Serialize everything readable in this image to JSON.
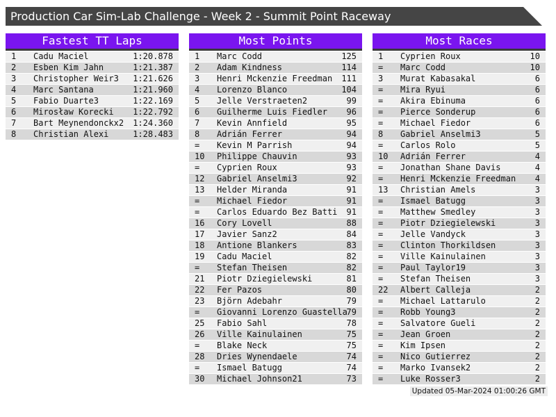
{
  "title": "Production Car Sim-Lab Challenge - Week 2 - Summit Point Raceway",
  "footer": "Updated 05-Mar-2024 01:00:26 GMT",
  "colors": {
    "accent_purple": "#7a15ef",
    "titlebar_gray": "#454545",
    "header_underline": "#3a3a3a",
    "row_light": "#f0f0f0",
    "row_dark": "#d8d8d8"
  },
  "tables": [
    {
      "title": "Fastest TT Laps",
      "rows": [
        [
          "1",
          "Cadu Maciel",
          "1:20.878"
        ],
        [
          "2",
          "Esben Kim Jahn",
          "1:21.387"
        ],
        [
          "3",
          "Christopher Weir3",
          "1:21.626"
        ],
        [
          "4",
          "Marc Santana",
          "1:21.960"
        ],
        [
          "5",
          "Fabio Duarte3",
          "1:22.169"
        ],
        [
          "6",
          "Mirosław Korecki",
          "1:22.792"
        ],
        [
          "7",
          "Bart Meynendonckx2",
          "1:24.360"
        ],
        [
          "8",
          "Christian Alexi",
          "1:28.483"
        ]
      ]
    },
    {
      "title": "Most Points",
      "rows": [
        [
          "1",
          "Marc Codd",
          "125"
        ],
        [
          "2",
          "Adam Kindness",
          "114"
        ],
        [
          "3",
          "Henri Mckenzie Freedman",
          "111"
        ],
        [
          "4",
          "Lorenzo Blanco",
          "104"
        ],
        [
          "5",
          "Jelle Verstraeten2",
          "99"
        ],
        [
          "6",
          "Guilherme Luis Fiedler",
          "96"
        ],
        [
          "7",
          "Kevin Annfield",
          "95"
        ],
        [
          "8",
          "Adrián Ferrer",
          "94"
        ],
        [
          "=",
          "Kevin M Parrish",
          "94"
        ],
        [
          "10",
          "Philippe Chauvin",
          "93"
        ],
        [
          "=",
          "Cyprien Roux",
          "93"
        ],
        [
          "12",
          "Gabriel Anselmi3",
          "92"
        ],
        [
          "13",
          "Helder Miranda",
          "91"
        ],
        [
          "=",
          "Michael Fiedor",
          "91"
        ],
        [
          "=",
          "Carlos Eduardo Bez Batti",
          "91"
        ],
        [
          "16",
          "Cory Lovell",
          "88"
        ],
        [
          "17",
          "Javier Sanz2",
          "84"
        ],
        [
          "18",
          "Antione Blankers",
          "83"
        ],
        [
          "19",
          "Cadu Maciel",
          "82"
        ],
        [
          "=",
          "Stefan Theisen",
          "82"
        ],
        [
          "21",
          "Piotr Dziegielewski",
          "81"
        ],
        [
          "22",
          "Fer Pazos",
          "80"
        ],
        [
          "23",
          "Björn Adebahr",
          "79"
        ],
        [
          "=",
          "Giovanni Lorenzo Guastella",
          "79"
        ],
        [
          "25",
          "Fabio Sahl",
          "78"
        ],
        [
          "26",
          "Ville Kainulainen",
          "75"
        ],
        [
          "=",
          "Blake Neck",
          "75"
        ],
        [
          "28",
          "Dries Wynendaele",
          "74"
        ],
        [
          "=",
          "Ismael Batugg",
          "74"
        ],
        [
          "30",
          "Michael Johnson21",
          "73"
        ]
      ]
    },
    {
      "title": "Most Races",
      "rows": [
        [
          "1",
          "Cyprien Roux",
          "10"
        ],
        [
          "=",
          "Marc Codd",
          "10"
        ],
        [
          "3",
          "Murat Kabasakal",
          "6"
        ],
        [
          "=",
          "Mira Ryui",
          "6"
        ],
        [
          "=",
          "Akira Ebinuma",
          "6"
        ],
        [
          "=",
          "Pierce Sonderup",
          "6"
        ],
        [
          "=",
          "Michael Fiedor",
          "6"
        ],
        [
          "8",
          "Gabriel Anselmi3",
          "5"
        ],
        [
          "=",
          "Carlos Rolo",
          "5"
        ],
        [
          "10",
          "Adrián Ferrer",
          "4"
        ],
        [
          "=",
          "Jonathan Shane Davis",
          "4"
        ],
        [
          "=",
          "Henri Mckenzie Freedman",
          "4"
        ],
        [
          "13",
          "Christian Amels",
          "3"
        ],
        [
          "=",
          "Ismael Batugg",
          "3"
        ],
        [
          "=",
          "Matthew Smedley",
          "3"
        ],
        [
          "=",
          "Piotr Dziegielewski",
          "3"
        ],
        [
          "=",
          "Jelle Vandyck",
          "3"
        ],
        [
          "=",
          "Clinton Thorkildsen",
          "3"
        ],
        [
          "=",
          "Ville Kainulainen",
          "3"
        ],
        [
          "=",
          "Paul Taylor19",
          "3"
        ],
        [
          "=",
          "Stefan Theisen",
          "3"
        ],
        [
          "22",
          "Albert Calleja",
          "2"
        ],
        [
          "=",
          "Michael Lattarulo",
          "2"
        ],
        [
          "=",
          "Robb Young3",
          "2"
        ],
        [
          "=",
          "Salvatore Gueli",
          "2"
        ],
        [
          "=",
          "Jean Groen",
          "2"
        ],
        [
          "=",
          "Kim Ipsen",
          "2"
        ],
        [
          "=",
          "Nico Gutierrez",
          "2"
        ],
        [
          "=",
          "Marko Ivansek2",
          "2"
        ],
        [
          "=",
          "Luke Rosser3",
          "2"
        ]
      ]
    }
  ]
}
